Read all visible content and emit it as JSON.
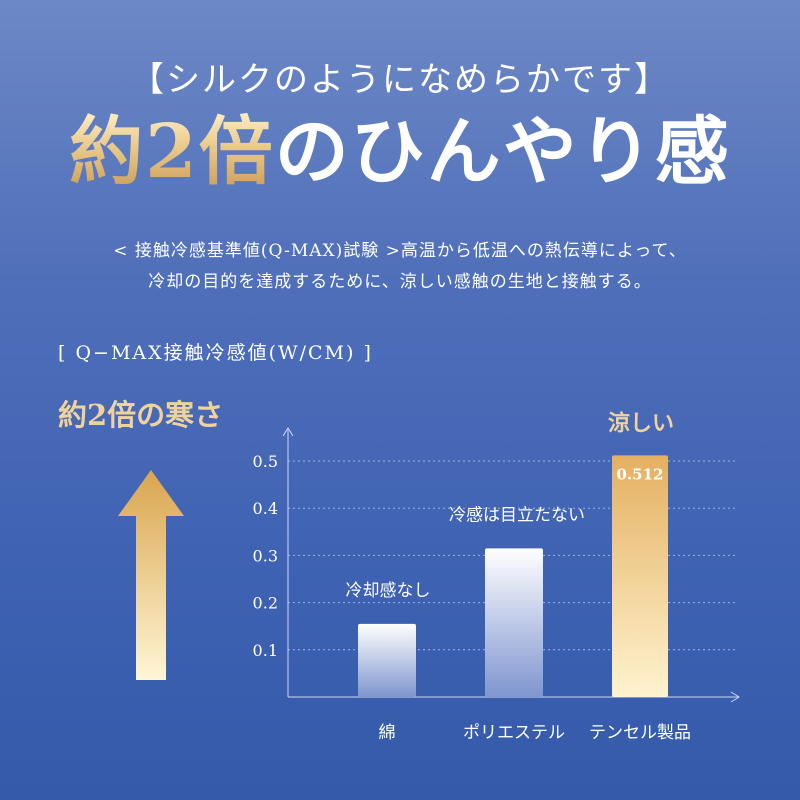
{
  "header": {
    "subtitle": "【シルクのようになめらかです】",
    "headline_gold": "約2倍",
    "headline_rest": "のひんやり感"
  },
  "description": {
    "line1": "< 接触冷感基準値(Q-MAX)試験 >高温から低温への熱伝導によって、",
    "line2": "冷却の目的を達成するために、涼しい感触の生地と接触する。"
  },
  "chart_header": {
    "qmax_label": "[ Q−MAX接触冷感値(W/CM) ]",
    "twice_label": "約2倍の寒さ"
  },
  "colors": {
    "gold": "#e9c98a",
    "gold_dark": "#d9a54e",
    "grid": "#9fb4e0"
  },
  "chart_data": {
    "type": "bar",
    "categories": [
      "綿",
      "ポリエステル",
      "テンセル製品"
    ],
    "values": [
      0.155,
      0.315,
      0.512
    ],
    "value_label": "0.512",
    "annotations": [
      "冷却感なし",
      "冷感は目立たない",
      "涼しい"
    ],
    "yticks": [
      0.1,
      0.2,
      0.3,
      0.4,
      0.5
    ],
    "ytick_labels": [
      "0.1",
      "0.2",
      "0.3",
      "0.4",
      "0.5"
    ],
    "ylim": [
      0,
      0.55
    ],
    "grid": true
  }
}
